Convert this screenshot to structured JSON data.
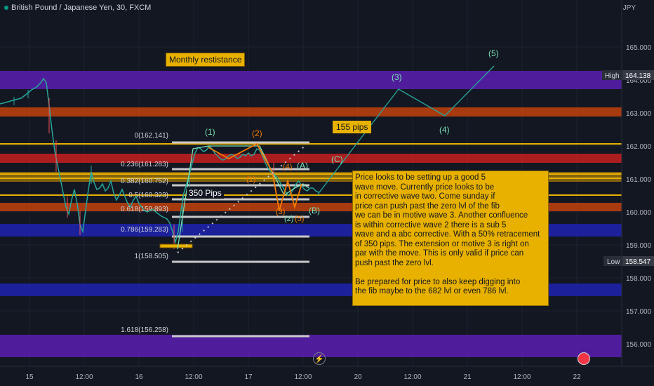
{
  "header": {
    "title": "British Pound / Japanese Yen, 30, FXCM",
    "currency": "JPY"
  },
  "price_axis": {
    "ticks": [
      "165.000",
      "164.000",
      "163.000",
      "162.000",
      "161.000",
      "160.000",
      "159.000",
      "158.000",
      "157.000",
      "156.000"
    ],
    "high_label": "High",
    "high_value": "164.138",
    "low_label": "Low",
    "low_value": "158.547"
  },
  "time_axis": {
    "ticks": [
      "15",
      "12:00",
      "16",
      "12:00",
      "17",
      "12:00",
      "20",
      "12:00",
      "21",
      "12:00",
      "22"
    ]
  },
  "fib_levels": [
    "0(162.141)",
    "0.236(161.283)",
    "0.382(160.752)",
    "0.5(160.323)",
    "0.618(159.893)",
    "0.786(159.283)",
    "1(158.505)",
    "1.618(156.258)"
  ],
  "wave_labels": {
    "w1": "(1)",
    "w2": "(2)",
    "w3": "(3)",
    "w4": "(4)",
    "w5": "(5)",
    "wA": "(A)",
    "wB": "(B)",
    "wC": "(C)",
    "sub1": "(1)",
    "sub2": "(2)",
    "sub3": "(3)",
    "sub4": "(4)",
    "sub5": "(5)"
  },
  "annotations": {
    "monthly": "Monthly restistance",
    "pips155": "155 pips",
    "pips350": "350 Pips",
    "note": "Price looks to be setting up a good 5\nwave move. Currently price looks to be\nin corrective wave two. Come sunday if\nprice can push past the zero lvl of the fib\nwe can be in motive wave 3. Another confluence\nis within corrective wave 2 there is a sub 5\nwave and a abc corrective. With a 50% retracement\nof 350 pips. The extension or motive 3 is right on\npar with the move. This is only valid if price can\npush past the zero lvl.\n\nBe prepared for price to also keep digging into\nthe fib maybe to the 682 lvl or even 786 lvl."
  },
  "colors": {
    "background": "#131722",
    "purple_zone": "#5b1fb0",
    "orange_zone": "#c2410c",
    "red_zone": "#c81e1e",
    "blue_zone": "#1e22a8",
    "yellow_line": "#e8b100",
    "up_candle": "#26a69a",
    "down_candle": "#ef5350",
    "wave_green": "#79e0b5",
    "wave_orange": "#f57c00",
    "projection": "#26a69a"
  },
  "icons": [
    "flash-icon",
    "tradingview-logo-icon"
  ]
}
